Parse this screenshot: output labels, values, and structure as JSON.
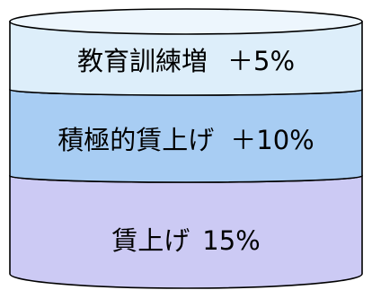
{
  "segments": [
    {
      "label": "教育訓練増",
      "value": "＋5%",
      "color": "#ddeefa"
    },
    {
      "label": "積極的賃上げ",
      "value": "＋10%",
      "color": "#a8cdf3"
    },
    {
      "label": "賃上げ",
      "value": "15%",
      "color": "#cccaf4"
    }
  ]
}
